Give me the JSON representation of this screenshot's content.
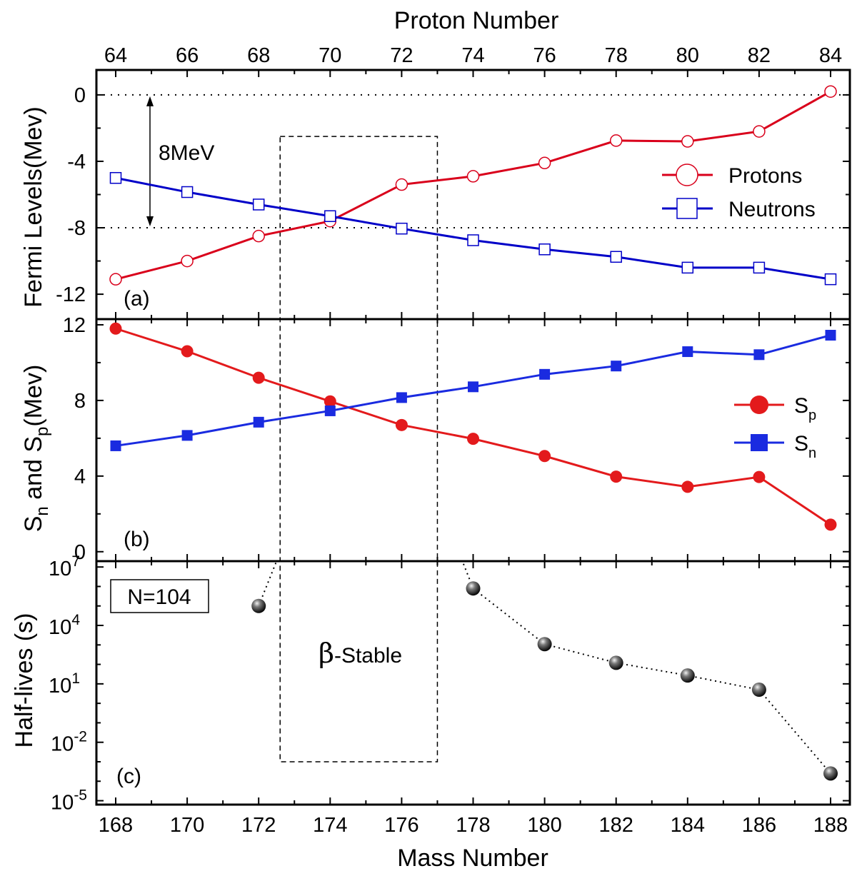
{
  "chart_data": [
    {
      "panel": "a",
      "type": "line",
      "top_axis": {
        "title": "Proton Number",
        "ticks": [
          "64",
          "66",
          "68",
          "70",
          "72",
          "74",
          "76",
          "78",
          "80",
          "82",
          "84"
        ]
      },
      "x": [
        168,
        170,
        172,
        174,
        176,
        178,
        180,
        182,
        184,
        186,
        188
      ],
      "ylabel": "Fermi Levels(Mev)",
      "ylim": [
        -13.5,
        1.5
      ],
      "yticks": [
        {
          "value": 0,
          "label": "0"
        },
        {
          "value": -4,
          "label": "-4"
        },
        {
          "value": -8,
          "label": "-8"
        },
        {
          "value": -12,
          "label": "-12"
        }
      ],
      "reference_lines": [
        0,
        -8
      ],
      "arrow": {
        "from": 0,
        "to": -8,
        "x": 169,
        "label": "8MeV"
      },
      "panel_label": "(a)",
      "series": [
        {
          "name": "Protons",
          "color": "#d9001b",
          "marker": "open-circle",
          "values": [
            -11.1,
            -10.0,
            -8.5,
            -7.6,
            -5.4,
            -4.9,
            -4.1,
            -2.75,
            -2.8,
            -2.2,
            0.2
          ]
        },
        {
          "name": "Neutrons",
          "color": "#0000c8",
          "marker": "open-square",
          "values": [
            -5.0,
            -5.85,
            -6.6,
            -7.3,
            -8.05,
            -8.75,
            -9.3,
            -9.75,
            -10.4,
            -10.4,
            -11.1
          ]
        }
      ]
    },
    {
      "panel": "b",
      "type": "line",
      "x": [
        168,
        170,
        172,
        174,
        176,
        178,
        180,
        182,
        184,
        186,
        188
      ],
      "ylabel": {
        "p1": "S",
        "p1_sub": "n",
        "p2": " and S",
        "p2_sub": "p",
        "p3": "(Mev)"
      },
      "ylim": [
        -0.5,
        12.3
      ],
      "yticks": [
        {
          "value": 0,
          "label": "0"
        },
        {
          "value": 4,
          "label": "4"
        },
        {
          "value": 8,
          "label": "8"
        },
        {
          "value": 12,
          "label": "12"
        }
      ],
      "panel_label": "(b)",
      "series": [
        {
          "name": "S",
          "sub": "p",
          "color": "#e31a1c",
          "marker": "filled-circle",
          "values": [
            11.8,
            10.6,
            9.2,
            7.95,
            6.7,
            5.97,
            5.06,
            3.97,
            3.43,
            3.95,
            1.43
          ]
        },
        {
          "name": "S",
          "sub": "n",
          "color": "#1a2be0",
          "marker": "filled-square",
          "values": [
            5.6,
            6.15,
            6.85,
            7.45,
            8.15,
            8.72,
            9.38,
            9.82,
            10.58,
            10.42,
            11.45
          ]
        }
      ]
    },
    {
      "panel": "c",
      "type": "scatter",
      "x": [
        172,
        178,
        180,
        182,
        184,
        186,
        188
      ],
      "log_values": [
        5.0,
        5.9,
        3.04,
        2.08,
        1.43,
        0.7,
        -3.6
      ],
      "offscale_links": [
        {
          "x": 172,
          "to": 172.5,
          "from_log": 5.0
        },
        {
          "x": 178,
          "to": 177.7,
          "from_log": 5.9
        }
      ],
      "ylabel": "Half-lives (s)",
      "yscale": "log",
      "ylim_exponent": [
        -5.2,
        7.3
      ],
      "yticks": [
        {
          "exp": 7,
          "base": "10",
          "sup": "7"
        },
        {
          "exp": 4,
          "base": "10",
          "sup": "4"
        },
        {
          "exp": 1,
          "base": "10",
          "sup": "1"
        },
        {
          "exp": -2,
          "base": "10",
          "sup": "-2"
        },
        {
          "exp": -5,
          "base": "10",
          "sup": "-5"
        }
      ],
      "xticks": [
        "168",
        "170",
        "172",
        "174",
        "176",
        "178",
        "180",
        "182",
        "184",
        "186",
        "188"
      ],
      "xlabel": "Mass Number",
      "panel_label": "(c)",
      "box_label": "N=104",
      "region": {
        "x0": 172.6,
        "x1": 177.0,
        "top_value_a": -2.5,
        "bottom_log_c": -3.0,
        "symbol": "β",
        "label": "-Stable"
      }
    }
  ]
}
